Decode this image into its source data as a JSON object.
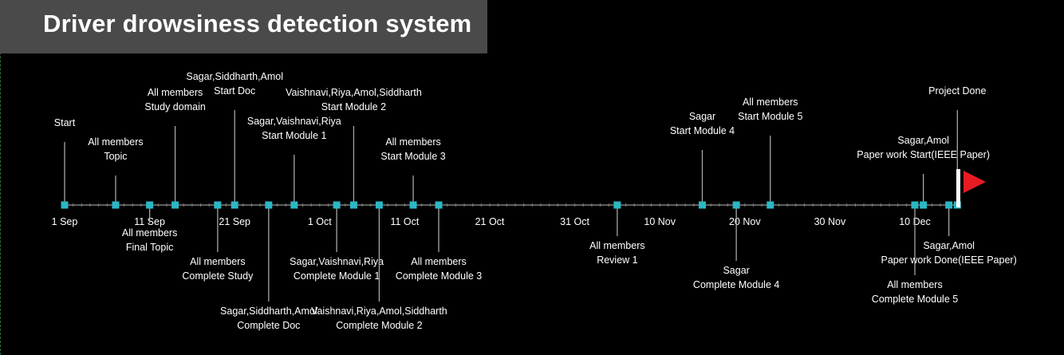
{
  "title": "Driver drowsiness detection system",
  "colors": {
    "background": "#000000",
    "title_bar": "#4a4a4a",
    "axis": "#7f7f7f",
    "marker": "#2bb7c4",
    "leader": "#a6a6a6",
    "text": "#ffffff",
    "flag": "#e81b23"
  },
  "axis_labels": [
    "1 Sep",
    "11 Sep",
    "21 Sep",
    "1 Oct",
    "11 Oct",
    "21 Oct",
    "31 Oct",
    "10 Nov",
    "20 Nov",
    "30 Nov",
    "10 Dec"
  ],
  "end_marker": "red-flag-icon",
  "chart_data": {
    "type": "timeline",
    "x_axis_start": "2019-09-01",
    "milestones": [
      {
        "date": "2019-09-01",
        "who": "",
        "what": "Start",
        "side": "above"
      },
      {
        "date": "2019-09-07",
        "who": "All members",
        "what": "Topic",
        "side": "above"
      },
      {
        "date": "2019-09-11",
        "who": "All members",
        "what": "Final Topic",
        "side": "below"
      },
      {
        "date": "2019-09-14",
        "who": "All members",
        "what": "Study domain",
        "side": "above"
      },
      {
        "date": "2019-09-19",
        "who": "All members",
        "what": "Complete Study",
        "side": "below"
      },
      {
        "date": "2019-09-21",
        "who": "Sagar,Siddharth,Amol",
        "what": "Start Doc",
        "side": "above"
      },
      {
        "date": "2019-09-25",
        "who": "Sagar,Siddharth,Amol",
        "what": "Complete Doc",
        "side": "below"
      },
      {
        "date": "2019-09-28",
        "who": "Sagar,Vaishnavi,Riya",
        "what": "Start Module 1",
        "side": "above"
      },
      {
        "date": "2019-10-03",
        "who": "Sagar,Vaishnavi,Riya",
        "what": "Complete Module 1",
        "side": "below"
      },
      {
        "date": "2019-10-05",
        "who": "Vaishnavi,Riya,Amol,Siddharth",
        "what": "Start Module 2",
        "side": "above"
      },
      {
        "date": "2019-10-08",
        "who": "Vaishnavi,Riya,Amol,Siddharth",
        "what": "Complete Module 2",
        "side": "below"
      },
      {
        "date": "2019-10-12",
        "who": "All members",
        "what": "Start Module 3",
        "side": "above"
      },
      {
        "date": "2019-10-15",
        "who": "All members",
        "what": "Complete Module 3",
        "side": "below"
      },
      {
        "date": "2019-11-05",
        "who": "All members",
        "what": "Review 1",
        "side": "below"
      },
      {
        "date": "2019-11-15",
        "who": "Sagar",
        "what": "Start Module 4",
        "side": "above"
      },
      {
        "date": "2019-11-19",
        "who": "Sagar",
        "what": "Complete Module 4",
        "side": "below"
      },
      {
        "date": "2019-11-23",
        "who": "All members",
        "what": "Start Module 5",
        "side": "above"
      },
      {
        "date": "2019-12-10",
        "who": "All members",
        "what": "Complete Module 5",
        "side": "below"
      },
      {
        "date": "2019-12-11",
        "who": "Sagar,Amol",
        "what": "Paper work Start(IEEE Paper)",
        "side": "above"
      },
      {
        "date": "2019-12-14",
        "who": "Sagar,Amol",
        "what": "Paper work Done(IEEE Paper)",
        "side": "below"
      },
      {
        "date": "2019-12-15",
        "who": "",
        "what": "Project Done",
        "side": "above"
      }
    ]
  }
}
